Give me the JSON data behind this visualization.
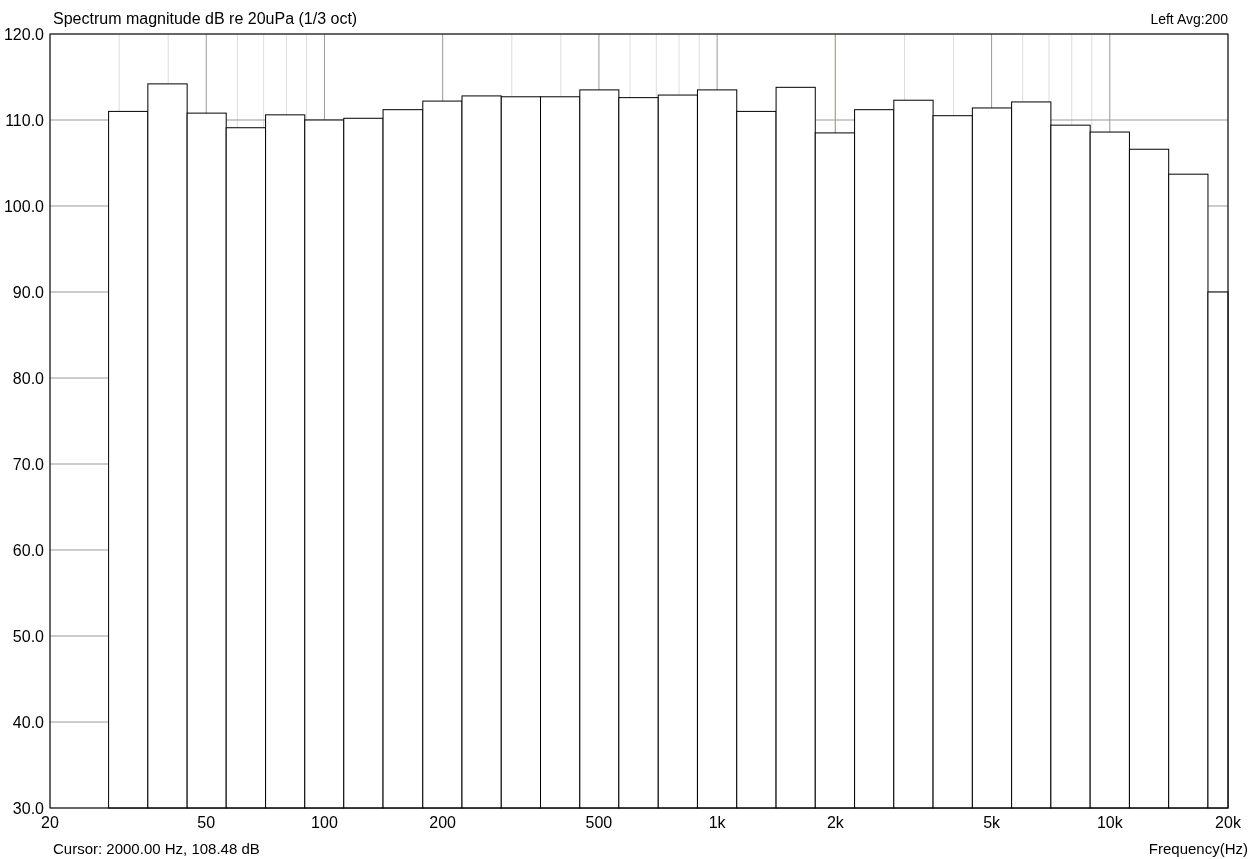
{
  "chart_data": {
    "type": "histogram",
    "title": "Spectrum magnitude dB re 20uPa (1/3 oct)",
    "xlabel": "Frequency(Hz)",
    "annotations": [
      "Left  Avg:200",
      "Cursor:  2000.00 Hz, 108.48 dB"
    ],
    "bins": [
      28.2,
      35.5,
      44.7,
      56.2,
      70.8,
      89.1,
      112,
      141,
      178,
      224,
      282,
      355,
      447,
      562,
      708,
      891,
      1122,
      1413,
      1778,
      2239,
      2818,
      3548,
      4467,
      5623,
      7079,
      8913,
      11220,
      14125,
      17783,
      20000
    ],
    "values": [
      111.0,
      114.2,
      110.8,
      109.1,
      110.6,
      110.0,
      110.2,
      111.2,
      112.2,
      112.8,
      112.7,
      112.7,
      113.5,
      112.6,
      112.9,
      113.5,
      111.0,
      113.8,
      108.5,
      111.2,
      112.3,
      110.5,
      111.4,
      112.1,
      109.4,
      108.6,
      106.6,
      103.7,
      90.0
    ],
    "color": "#ffffff",
    "log": "x",
    "grid": true,
    "xlim": [
      20,
      20000
    ],
    "xticks": [
      20,
      {
        "value": 30,
        "label": null
      },
      {
        "value": 40,
        "label": null
      },
      50,
      {
        "value": 60,
        "label": null
      },
      {
        "value": 70,
        "label": null
      },
      {
        "value": 80,
        "label": null
      },
      {
        "value": 90,
        "label": null
      },
      100,
      200,
      {
        "value": 300,
        "label": null
      },
      {
        "value": 400,
        "label": null
      },
      500,
      {
        "value": 600,
        "label": null
      },
      {
        "value": 700,
        "label": null
      },
      {
        "value": 800,
        "label": null
      },
      {
        "value": 900,
        "label": null
      },
      {
        "value": 1000,
        "label": "1k"
      },
      {
        "value": 2000,
        "label": "2k"
      },
      {
        "value": 3000,
        "label": null
      },
      {
        "value": 4000,
        "label": null
      },
      {
        "value": 5000,
        "label": "5k"
      },
      {
        "value": 6000,
        "label": null
      },
      {
        "value": 7000,
        "label": null
      },
      {
        "value": 8000,
        "label": null
      },
      {
        "value": 9000,
        "label": null
      },
      {
        "value": 10000,
        "label": "10k"
      },
      {
        "value": 20000,
        "label": "20k"
      }
    ],
    "ylim": [
      30,
      120
    ],
    "yticks": [
      {
        "value": 30,
        "label": "30.0"
      },
      {
        "value": 40,
        "label": "40.0"
      },
      {
        "value": 50,
        "label": "50.0"
      },
      {
        "value": 60,
        "label": "60.0"
      },
      {
        "value": 70,
        "label": "70.0"
      },
      {
        "value": 80,
        "label": "80.0"
      },
      {
        "value": 90,
        "label": "90.0"
      },
      {
        "value": 100,
        "label": "100.0"
      },
      {
        "value": 110,
        "label": "110.0"
      },
      {
        "value": 120,
        "label": "120.0"
      }
    ],
    "ref_lines": [
      {
        "axis": "x",
        "value": 2000,
        "color": "#b0b060"
      }
    ]
  }
}
